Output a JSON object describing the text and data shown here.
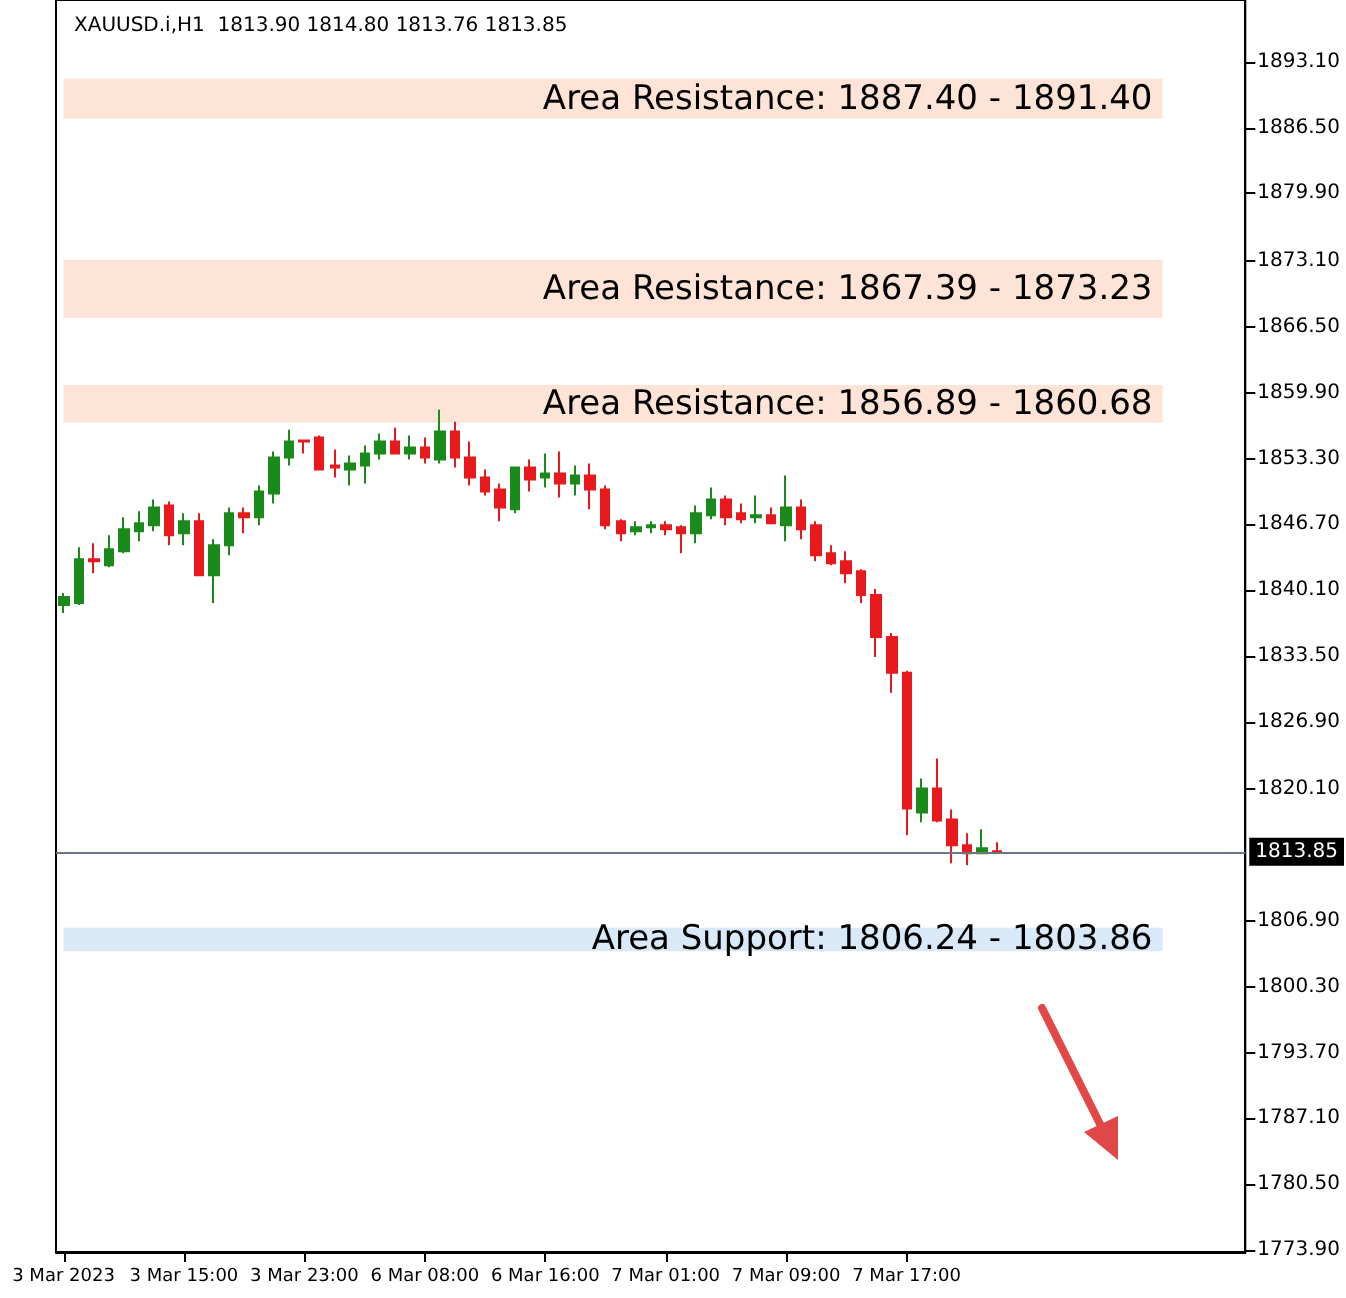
{
  "chart_data": {
    "type": "candlestick",
    "title": "XAUUSD.i,H1  1813.90 1814.80 1813.76 1813.85",
    "categories": [
      "3 Mar 2023",
      null,
      null,
      null,
      null,
      null,
      null,
      null,
      "3 Mar 15:00",
      null,
      null,
      null,
      null,
      null,
      null,
      null,
      "3 Mar 23:00",
      null,
      null,
      null,
      null,
      null,
      null,
      null,
      "6 Mar 08:00",
      null,
      null,
      null,
      null,
      null,
      null,
      null,
      "6 Mar 16:00",
      null,
      null,
      null,
      null,
      null,
      null,
      null,
      "7 Mar 01:00",
      null,
      null,
      null,
      null,
      null,
      null,
      null,
      "7 Mar 09:00",
      null,
      null,
      null,
      null,
      null,
      null,
      null,
      "7 Mar 17:00",
      null,
      null,
      null,
      null,
      null,
      null,
      null,
      null,
      null,
      null,
      null,
      null,
      null,
      null,
      null,
      null,
      null,
      null,
      null,
      null,
      null,
      null
    ],
    "ohlc": [
      [
        1838.6,
        1839.8,
        1837.8,
        1839.4
      ],
      [
        1838.8,
        1844.4,
        1838.6,
        1843.2
      ],
      [
        1843.2,
        1844.8,
        1841.8,
        1843.0
      ],
      [
        1842.6,
        1845.6,
        1842.4,
        1844.2
      ],
      [
        1844.0,
        1847.4,
        1843.8,
        1846.2
      ],
      [
        1846.0,
        1848.0,
        1845.0,
        1846.8
      ],
      [
        1846.6,
        1849.2,
        1846.0,
        1848.4
      ],
      [
        1848.6,
        1849.0,
        1844.6,
        1845.6
      ],
      [
        1845.8,
        1847.8,
        1844.6,
        1847.0
      ],
      [
        1847.0,
        1847.8,
        1841.6,
        1841.6
      ],
      [
        1841.6,
        1845.2,
        1838.8,
        1844.6
      ],
      [
        1844.6,
        1848.4,
        1843.6,
        1847.8
      ],
      [
        1847.8,
        1848.4,
        1845.8,
        1847.4
      ],
      [
        1847.4,
        1850.6,
        1846.6,
        1850.0
      ],
      [
        1849.8,
        1854.0,
        1848.8,
        1853.4
      ],
      [
        1853.4,
        1856.2,
        1852.6,
        1855.0
      ],
      [
        1855.1,
        1855.1,
        1853.8,
        1855.0
      ],
      [
        1855.4,
        1855.6,
        1852.2,
        1852.2
      ],
      [
        1852.6,
        1854.2,
        1851.4,
        1852.4
      ],
      [
        1852.2,
        1853.6,
        1850.6,
        1852.8
      ],
      [
        1852.6,
        1854.6,
        1850.8,
        1853.8
      ],
      [
        1853.8,
        1855.8,
        1853.2,
        1855.0
      ],
      [
        1855.0,
        1856.4,
        1853.8,
        1853.8
      ],
      [
        1853.8,
        1855.6,
        1853.2,
        1854.4
      ],
      [
        1854.4,
        1855.4,
        1852.8,
        1853.4
      ],
      [
        1853.2,
        1858.2,
        1852.8,
        1856.0
      ],
      [
        1856.0,
        1857.0,
        1852.4,
        1853.4
      ],
      [
        1853.4,
        1855.0,
        1850.6,
        1851.4
      ],
      [
        1851.4,
        1852.2,
        1849.6,
        1850.0
      ],
      [
        1850.2,
        1850.8,
        1847.0,
        1848.4
      ],
      [
        1848.2,
        1852.4,
        1847.8,
        1852.4
      ],
      [
        1852.4,
        1853.2,
        1850.0,
        1851.2
      ],
      [
        1851.4,
        1853.8,
        1850.4,
        1851.8
      ],
      [
        1851.8,
        1854.0,
        1849.4,
        1850.8
      ],
      [
        1850.8,
        1852.6,
        1849.6,
        1851.6
      ],
      [
        1851.6,
        1852.8,
        1848.2,
        1850.2
      ],
      [
        1850.2,
        1850.6,
        1846.2,
        1846.6
      ],
      [
        1847.0,
        1847.2,
        1845.0,
        1845.8
      ],
      [
        1846.0,
        1847.0,
        1845.6,
        1846.4
      ],
      [
        1846.4,
        1847.0,
        1845.8,
        1846.6
      ],
      [
        1846.6,
        1847.0,
        1845.6,
        1846.2
      ],
      [
        1846.4,
        1846.6,
        1843.8,
        1845.8
      ],
      [
        1845.8,
        1848.6,
        1844.8,
        1847.8
      ],
      [
        1847.6,
        1850.4,
        1847.2,
        1849.2
      ],
      [
        1849.2,
        1849.6,
        1846.6,
        1847.4
      ],
      [
        1847.8,
        1848.8,
        1846.8,
        1847.2
      ],
      [
        1847.4,
        1849.6,
        1846.8,
        1847.6
      ],
      [
        1847.6,
        1848.4,
        1846.8,
        1846.8
      ],
      [
        1846.6,
        1851.6,
        1845.0,
        1848.4
      ],
      [
        1848.4,
        1849.2,
        1845.2,
        1846.2
      ],
      [
        1846.6,
        1847.0,
        1843.0,
        1843.6
      ],
      [
        1843.8,
        1844.6,
        1842.6,
        1842.8
      ],
      [
        1843.0,
        1844.0,
        1840.8,
        1841.8
      ],
      [
        1842.0,
        1842.2,
        1838.8,
        1839.6
      ],
      [
        1839.6,
        1840.2,
        1833.4,
        1835.4
      ],
      [
        1835.4,
        1835.8,
        1829.8,
        1831.8
      ],
      [
        1831.8,
        1832.0,
        1815.5,
        1818.2
      ],
      [
        1817.8,
        1821.2,
        1816.8,
        1820.2
      ],
      [
        1820.2,
        1823.2,
        1816.8,
        1817.0
      ],
      [
        1817.1,
        1818.1,
        1812.7,
        1814.5
      ],
      [
        1814.5,
        1815.7,
        1812.5,
        1813.7
      ],
      [
        1813.7,
        1816.1,
        1813.6,
        1814.2
      ],
      [
        1813.9,
        1814.8,
        1813.76,
        1813.85
      ],
      null,
      null,
      null,
      null,
      null,
      null,
      null,
      null,
      null,
      null,
      null,
      null,
      null,
      null,
      null,
      null
    ],
    "colors": [
      "#1a8a1a",
      "#1a8a1a",
      "#e8191c",
      "#1a8a1a",
      "#1a8a1a",
      "#1a8a1a",
      "#1a8a1a",
      "#e8191c",
      "#1a8a1a",
      "#e8191c",
      "#1a8a1a",
      "#1a8a1a",
      "#e8191c",
      "#1a8a1a",
      "#1a8a1a",
      "#1a8a1a",
      "#e8191c",
      "#e8191c",
      "#e8191c",
      "#1a8a1a",
      "#1a8a1a",
      "#1a8a1a",
      "#e8191c",
      "#1a8a1a",
      "#e8191c",
      "#1a8a1a",
      "#e8191c",
      "#e8191c",
      "#e8191c",
      "#e8191c",
      "#1a8a1a",
      "#e8191c",
      "#1a8a1a",
      "#e8191c",
      "#1a8a1a",
      "#e8191c",
      "#e8191c",
      "#e8191c",
      "#1a8a1a",
      "#1a8a1a",
      "#e8191c",
      "#e8191c",
      "#1a8a1a",
      "#1a8a1a",
      "#e8191c",
      "#e8191c",
      "#1a8a1a",
      "#e8191c",
      "#1a8a1a",
      "#e8191c",
      "#e8191c",
      "#e8191c",
      "#e8191c",
      "#e8191c",
      "#e8191c",
      "#e8191c",
      "#e8191c",
      "#1a8a1a",
      "#e8191c",
      "#e8191c",
      "#e8191c",
      "#1a8a1a",
      "#e8191c",
      null,
      null,
      null,
      null,
      null,
      null,
      null,
      null,
      null,
      null,
      null,
      null,
      null,
      null,
      null,
      null
    ],
    "ylim": [
      1773.7,
      1899.3
    ],
    "yticks": [
      {
        "value": 1773.9,
        "label": "1773.90"
      },
      {
        "value": 1780.5,
        "label": "1780.50"
      },
      {
        "value": 1787.1,
        "label": "1787.10"
      },
      {
        "value": 1793.7,
        "label": "1793.70"
      },
      {
        "value": 1800.3,
        "label": "1800.30"
      },
      {
        "value": 1806.9,
        "label": "1806.90"
      },
      {
        "value": 1820.1,
        "label": "1820.10"
      },
      {
        "value": 1826.9,
        "label": "1826.90"
      },
      {
        "value": 1833.5,
        "label": "1833.50"
      },
      {
        "value": 1840.1,
        "label": "1840.10"
      },
      {
        "value": 1846.7,
        "label": "1846.70"
      },
      {
        "value": 1853.3,
        "label": "1853.30"
      },
      {
        "value": 1859.9,
        "label": "1859.90"
      },
      {
        "value": 1866.5,
        "label": "1866.50"
      },
      {
        "value": 1873.1,
        "label": "1873.10"
      },
      {
        "value": 1879.9,
        "label": "1879.90"
      },
      {
        "value": 1886.5,
        "label": "1886.50"
      },
      {
        "value": 1893.1,
        "label": "1893.10"
      }
    ],
    "bands": [
      {
        "axis": "y",
        "from": 1887.4,
        "to": 1891.4,
        "label": "Area Resistance: 1887.40 - 1891.40",
        "color": "#fde4d6"
      },
      {
        "axis": "y",
        "from": 1867.39,
        "to": 1873.23,
        "label": "Area Resistance: 1867.39 - 1873.23",
        "color": "#fde4d6"
      },
      {
        "axis": "y",
        "from": 1856.89,
        "to": 1860.68,
        "label": "Area Resistance: 1856.89 - 1860.68",
        "color": "#fde4d6"
      },
      {
        "axis": "y",
        "from": 1806.24,
        "to": 1803.86,
        "label": "Area Support: 1806.24 - 1803.86",
        "color": "#d9e9f7"
      }
    ],
    "ref_lines": [
      {
        "axis": "y",
        "value": 1813.85,
        "label": "1813.85",
        "color": "#6b7480",
        "line_style": "solid"
      }
    ],
    "grid": false
  }
}
